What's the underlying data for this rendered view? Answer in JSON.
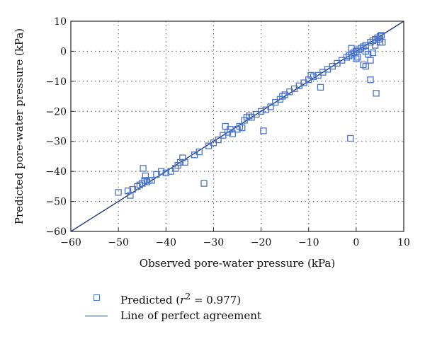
{
  "chart_data": {
    "type": "scatter",
    "xlabel": "Observed pore-water pressure (kPa)",
    "ylabel": "Predicted pore-water pressure (kPa)",
    "xlim": [
      -60,
      10
    ],
    "ylim": [
      -60,
      10
    ],
    "xticks": [
      -60,
      -50,
      -40,
      -30,
      -20,
      -10,
      0,
      10
    ],
    "yticks": [
      -60,
      -50,
      -40,
      -30,
      -20,
      -10,
      0,
      10
    ],
    "grid": "dotted",
    "legend_position": "below",
    "series": [
      {
        "name": "Predicted (r2 = 0.977)",
        "marker": "open-square",
        "color": "#4a73c9",
        "x": [
          -50,
          -48,
          -47.5,
          -47,
          -46,
          -45.5,
          -45,
          -44.8,
          -44.5,
          -44.3,
          -44,
          -43.5,
          -43,
          -42,
          -41,
          -40,
          -39,
          -38,
          -37.5,
          -37,
          -36.5,
          -36,
          -34,
          -33,
          -32,
          -31,
          -30,
          -29,
          -28,
          -27.5,
          -27,
          -26.5,
          -26,
          -25,
          -24.5,
          -24,
          -23.5,
          -23,
          -22.5,
          -22,
          -21,
          -20,
          -19.5,
          -19,
          -18,
          -17,
          -16,
          -15.5,
          -15,
          -14,
          -13,
          -12,
          -11,
          -10,
          -9.5,
          -9,
          -8,
          -7.5,
          -7,
          -6,
          -5,
          -4,
          -3,
          -2,
          -1.5,
          -1,
          -0.5,
          0,
          0,
          0.5,
          1,
          1.5,
          2,
          2,
          2.5,
          3,
          3,
          3.5,
          4,
          4,
          4.5,
          5,
          5,
          5.3,
          5.5,
          -1.2,
          1.5,
          3,
          4.2,
          -1,
          2,
          0.3,
          3.5,
          4.8
        ],
        "y": [
          -47,
          -46.5,
          -48,
          -46,
          -45,
          -44.5,
          -44,
          -39,
          -43,
          -41.5,
          -43.5,
          -43,
          -43,
          -41,
          -40,
          -40.5,
          -40,
          -39,
          -38,
          -37,
          -35.5,
          -37,
          -34.5,
          -33.5,
          -44,
          -31.5,
          -30.5,
          -29.5,
          -28,
          -25,
          -27,
          -26,
          -27.5,
          -26,
          -25,
          -25.5,
          -23,
          -22,
          -21.5,
          -22,
          -21,
          -20,
          -26.5,
          -19.5,
          -18.5,
          -17,
          -16,
          -15,
          -14.5,
          -13.5,
          -12.5,
          -11.5,
          -10.5,
          -9.5,
          -8,
          -8.5,
          -8,
          -12,
          -7,
          -6,
          -5,
          -4,
          -3,
          -2,
          -1.5,
          -1,
          -0.5,
          0,
          -2.5,
          0.5,
          1,
          1.5,
          2,
          0,
          -1,
          3,
          -3,
          3.5,
          4,
          2,
          4.5,
          5,
          3,
          5.3,
          3,
          -29,
          -4.5,
          -9.5,
          -14,
          1,
          -5,
          -2,
          -0.5,
          4
        ]
      },
      {
        "name": "Line of perfect agreement",
        "type": "line",
        "color": "#1f3a78",
        "x": [
          -60,
          10
        ],
        "y": [
          -60,
          10
        ]
      }
    ]
  },
  "legend": {
    "predicted_prefix": "Predicted (",
    "predicted_r": "r",
    "predicted_sup": "2",
    "predicted_suffix": " = 0.977)",
    "line_label": "Line of perfect agreement"
  }
}
